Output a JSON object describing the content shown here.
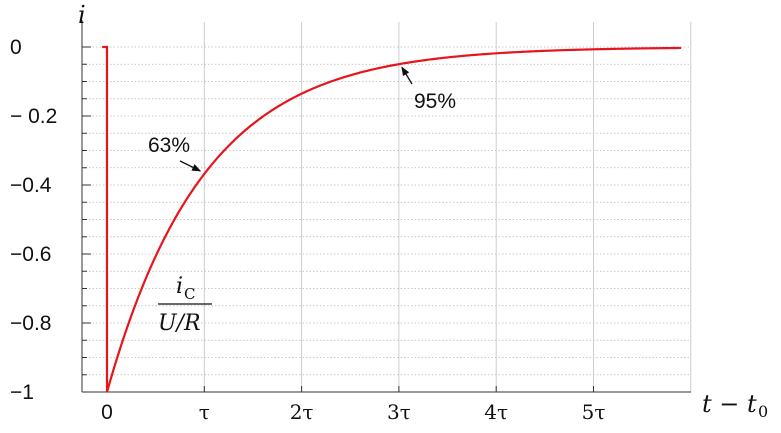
{
  "chart_data": {
    "type": "line",
    "x_min": -0.05,
    "x_max": 5.9,
    "ylim": [
      -1,
      0
    ],
    "y_ticks": [
      0,
      -0.2,
      -0.4,
      -0.6,
      -0.8,
      -1
    ],
    "y_tick_labels": [
      "0",
      "− 0.2",
      "−0.4",
      "−0.6",
      "−0.8",
      "−1"
    ],
    "x_ticks": [
      0,
      1,
      2,
      3,
      4,
      5
    ],
    "x_tick_labels": [
      "0",
      "τ",
      "2τ",
      "3τ",
      "4τ",
      "5τ"
    ],
    "ylabel": "i",
    "xlabel": "t − t0",
    "grid": true,
    "series": [
      {
        "color": "#e8141b",
        "description_points": [
          [
            -0.05,
            0
          ],
          [
            0,
            0
          ],
          [
            0,
            -1
          ],
          [
            0.5,
            -0.607
          ],
          [
            1,
            -0.368
          ],
          [
            1.5,
            -0.223
          ],
          [
            2,
            -0.135
          ],
          [
            3,
            -0.05
          ],
          [
            4,
            -0.018
          ],
          [
            5,
            -0.007
          ],
          [
            5.9,
            -0.003
          ]
        ]
      }
    ],
    "annotations": [
      {
        "text": "63%",
        "at_x": 1,
        "at_y": -0.368
      },
      {
        "text": "95%",
        "at_x": 3,
        "at_y": -0.05
      }
    ],
    "curve_label": {
      "numerator": "iC",
      "denominator": "U/R"
    }
  }
}
